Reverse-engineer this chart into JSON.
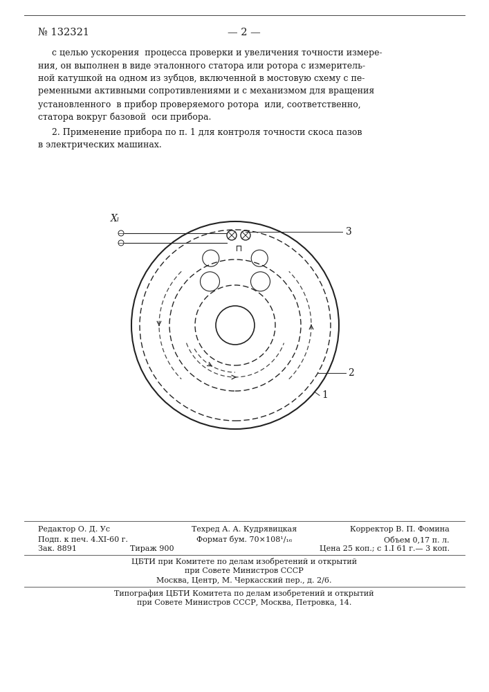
{
  "page_num": "№ 132321",
  "page_marker": "— 2 —",
  "para1_lines": [
    "с целью ускорения  процесса проверки и увеличения точности измере-",
    "ния, он выполнен в виде эталонного статора или ротора с измеритель-",
    "ной катушкой на одном из зубцов, включенной в мостовую схему с пе-",
    "ременными активными сопротивлениями и с механизмом для вращения",
    "установленного  в прибор проверяемого ротора  или, соответственно,",
    "статора вокруг базовой  оси прибора."
  ],
  "para2_lines": [
    "2. Применение прибора по п. 1 для контроля точности скоса пазов",
    "в электрических машинах."
  ],
  "footer_line1_left": "Редактор О. Д. Ус",
  "footer_line1_mid": "Техред А. А. Кудрявицкая",
  "footer_line1_right": "Корректор В. П. Фомина",
  "footer_line2_left": "Подп. к печ. 4.XI-60 г.",
  "footer_line2_mid": "Формат бум. 70×108¹/₁₆",
  "footer_line2_right": "Объем 0,17 п. л.",
  "footer_line3_left": "Зак. 8891",
  "footer_line3_mid": "Тираж 900",
  "footer_line3_right": "Цена 25 коп.; с 1.I 61 г.— 3 коп.",
  "footer_line4": "ЦБТИ при Комитете по делам изобретений и открытий",
  "footer_line5": "при Совете Министров СССР",
  "footer_line6": "Москва, Центр, М. Черкасский пер., д. 2/6.",
  "footer_line7": "Типография ЦБТИ Комитета по делам изобретений и открытий",
  "footer_line8": "при Совете Министров СССР, Москва, Петровка, 14.",
  "bg_color": "#ffffff",
  "text_color": "#1a1a1a",
  "label_XL": "Xₗ",
  "label_1": "1",
  "label_2": "2",
  "label_3": "3"
}
